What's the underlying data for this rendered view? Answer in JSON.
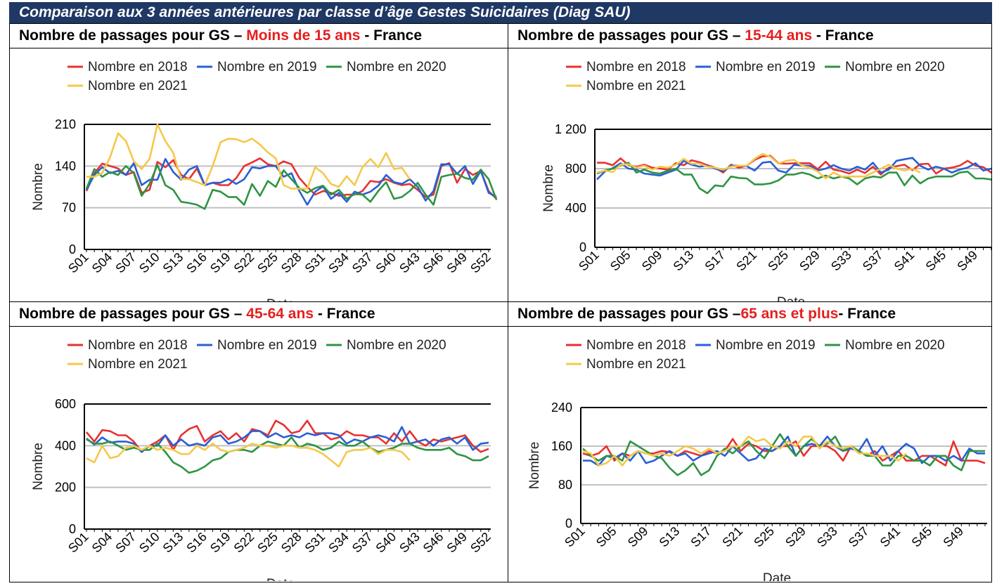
{
  "header": {
    "title": "Comparaison aux 3 années antérieures par classe d’âge Gestes Suicidaires (Diag SAU)"
  },
  "chart_data": [
    {
      "type": "line",
      "title_prefix": "Nombre de passages pour GS – ",
      "title_highlight": "Moins de 15 ans",
      "title_suffix": " - France",
      "xlabel": "Date",
      "ylabel": "Nombre",
      "ylim": [
        0,
        210
      ],
      "yticks": [
        0,
        70,
        140,
        210
      ],
      "ytick_labels": [
        "0",
        "70",
        "140",
        "210"
      ],
      "xtick_labels": [
        "S01",
        "S04",
        "S07",
        "S10",
        "S13",
        "S16",
        "S19",
        "S22",
        "S25",
        "S28",
        "S31",
        "S34",
        "S37",
        "S40",
        "S43",
        "S46",
        "S49",
        "S52"
      ],
      "xtick_step": 3,
      "legend": "top",
      "grid": "horizontal",
      "series": [
        {
          "name": "Nombre en 2018",
          "color": "#e8312f",
          "values": [
            98,
            128,
            144,
            140,
            136,
            125,
            130,
            95,
            100,
            147,
            138,
            150,
            125,
            118,
            136,
            108,
            112,
            108,
            108,
            120,
            140,
            146,
            153,
            143,
            140,
            148,
            143,
            120,
            105,
            92,
            98,
            95,
            90,
            92,
            92,
            98,
            115,
            113,
            118,
            112,
            108,
            110,
            100,
            88,
            92,
            140,
            145,
            112,
            135,
            125,
            132,
            98,
            85
          ]
        },
        {
          "name": "Nombre en 2019",
          "color": "#2a5fd4",
          "values": [
            100,
            125,
            138,
            128,
            132,
            125,
            145,
            108,
            117,
            117,
            152,
            130,
            117,
            134,
            140,
            108,
            112,
            112,
            118,
            110,
            118,
            138,
            136,
            140,
            140,
            122,
            128,
            98,
            75,
            97,
            106,
            85,
            95,
            80,
            97,
            92,
            97,
            107,
            125,
            113,
            110,
            118,
            105,
            82,
            98,
            143,
            143,
            127,
            140,
            110,
            132,
            95,
            88
          ]
        },
        {
          "name": "Nombre en 2020",
          "color": "#2e9443",
          "values": [
            102,
            135,
            122,
            130,
            125,
            140,
            128,
            90,
            110,
            142,
            108,
            100,
            80,
            78,
            75,
            68,
            100,
            97,
            88,
            88,
            75,
            110,
            90,
            115,
            105,
            133,
            118,
            103,
            95,
            103,
            107,
            92,
            100,
            85,
            93,
            92,
            80,
            98,
            113,
            85,
            88,
            98,
            112,
            92,
            75,
            122,
            125,
            127,
            120,
            117,
            134,
            118,
            83
          ]
        },
        {
          "name": "Nombre en 2021",
          "color": "#f5c84a",
          "values": [
            122,
            122,
            128,
            155,
            195,
            182,
            148,
            135,
            152,
            210,
            182,
            162,
            118,
            118,
            113,
            108,
            140,
            180,
            186,
            185,
            180,
            186,
            176,
            163,
            153,
            108,
            102,
            102,
            102,
            138,
            128,
            110,
            105,
            123,
            108,
            138,
            152,
            138,
            162,
            135,
            137,
            118
          ]
        }
      ]
    },
    {
      "type": "line",
      "title_prefix": "Nombre de passages pour GS – ",
      "title_highlight": "15-44 ans",
      "title_suffix": " - France",
      "xlabel": "Date",
      "ylabel": "Nombre",
      "ylim": [
        0,
        1200
      ],
      "yticks": [
        0,
        400,
        800,
        1200
      ],
      "ytick_labels": [
        "0",
        "400",
        "800",
        "1 200"
      ],
      "xtick_labels": [
        "S01",
        "S05",
        "S09",
        "S13",
        "S17",
        "S21",
        "S25",
        "S29",
        "S33",
        "S37",
        "S41",
        "S45",
        "S49"
      ],
      "xtick_step": 4,
      "legend": "top",
      "grid": "horizontal",
      "series": [
        {
          "name": "Nombre en 2018",
          "color": "#e8312f",
          "values": [
            860,
            860,
            835,
            905,
            835,
            820,
            840,
            810,
            800,
            790,
            855,
            835,
            885,
            865,
            835,
            810,
            760,
            840,
            810,
            830,
            890,
            925,
            930,
            855,
            850,
            855,
            855,
            855,
            795,
            870,
            790,
            775,
            750,
            790,
            755,
            820,
            740,
            810,
            825,
            840,
            785,
            845,
            850,
            750,
            800,
            810,
            830,
            880,
            830,
            815,
            760,
            700
          ]
        },
        {
          "name": "Nombre en 2019",
          "color": "#2a5fd4",
          "values": [
            690,
            770,
            805,
            855,
            800,
            790,
            750,
            740,
            730,
            760,
            790,
            880,
            840,
            820,
            830,
            800,
            775,
            830,
            830,
            825,
            780,
            860,
            870,
            780,
            760,
            840,
            830,
            830,
            780,
            800,
            835,
            800,
            780,
            820,
            790,
            860,
            760,
            790,
            880,
            895,
            910,
            830,
            790,
            820,
            800,
            760,
            790,
            810,
            855,
            780,
            800,
            730
          ]
        },
        {
          "name": "Nombre en 2020",
          "color": "#2e9443",
          "values": [
            750,
            780,
            800,
            830,
            860,
            760,
            790,
            760,
            750,
            780,
            800,
            740,
            740,
            600,
            550,
            630,
            620,
            720,
            705,
            700,
            640,
            640,
            650,
            680,
            740,
            740,
            760,
            740,
            700,
            730,
            700,
            720,
            700,
            640,
            700,
            720,
            710,
            760,
            760,
            630,
            730,
            650,
            700,
            720,
            720,
            720,
            760,
            770,
            700,
            700,
            690,
            590
          ]
        },
        {
          "name": "Nombre en 2021",
          "color": "#f5c84a",
          "values": [
            760,
            780,
            765,
            840,
            845,
            810,
            830,
            790,
            820,
            810,
            840,
            900,
            850,
            850,
            820,
            810,
            790,
            820,
            830,
            830,
            900,
            950,
            920,
            850,
            880,
            890,
            830,
            810,
            770,
            700,
            760,
            720,
            720,
            720,
            720,
            760,
            800,
            840,
            800,
            780,
            800,
            760
          ]
        }
      ]
    },
    {
      "type": "line",
      "title_prefix": "Nombre de passages pour GS – ",
      "title_highlight": "45-64 ans",
      "title_suffix": " - France",
      "xlabel": "Date",
      "ylabel": "Nombre",
      "ylim": [
        0,
        600
      ],
      "yticks": [
        0,
        200,
        400,
        600
      ],
      "ytick_labels": [
        "0",
        "200",
        "400",
        "600"
      ],
      "xtick_labels": [
        "S01",
        "S04",
        "S07",
        "S10",
        "S13",
        "S16",
        "S19",
        "S22",
        "S25",
        "S28",
        "S31",
        "S34",
        "S37",
        "S40",
        "S43",
        "S46",
        "S49",
        "S52"
      ],
      "xtick_step": 3,
      "legend": "top",
      "grid": "horizontal",
      "series": [
        {
          "name": "Nombre en 2018",
          "color": "#e8312f",
          "values": [
            465,
            420,
            475,
            470,
            450,
            450,
            420,
            370,
            400,
            420,
            450,
            380,
            450,
            480,
            495,
            420,
            450,
            470,
            430,
            460,
            420,
            480,
            470,
            450,
            520,
            500,
            460,
            470,
            520,
            460,
            460,
            430,
            440,
            470,
            450,
            450,
            440,
            440,
            410,
            460,
            420,
            470,
            420,
            400,
            430,
            420,
            430,
            440,
            450,
            400,
            370,
            385
          ]
        },
        {
          "name": "Nombre en 2019",
          "color": "#2a5fd4",
          "values": [
            435,
            405,
            440,
            415,
            420,
            420,
            410,
            370,
            400,
            400,
            450,
            400,
            430,
            400,
            410,
            400,
            440,
            450,
            410,
            420,
            440,
            470,
            470,
            440,
            460,
            440,
            450,
            440,
            460,
            450,
            460,
            460,
            450,
            410,
            430,
            420,
            440,
            450,
            440,
            420,
            490,
            410,
            420,
            430,
            400,
            430,
            440,
            410,
            440,
            380,
            410,
            415
          ]
        },
        {
          "name": "Nombre en 2020",
          "color": "#2e9443",
          "values": [
            430,
            410,
            410,
            420,
            400,
            380,
            390,
            380,
            380,
            410,
            370,
            320,
            300,
            270,
            280,
            300,
            330,
            340,
            370,
            380,
            380,
            370,
            400,
            420,
            410,
            400,
            440,
            390,
            410,
            400,
            380,
            390,
            420,
            400,
            400,
            420,
            390,
            370,
            380,
            390,
            410,
            410,
            390,
            380,
            380,
            380,
            390,
            360,
            350,
            330,
            330,
            350
          ]
        },
        {
          "name": "Nombre en 2021",
          "color": "#f5c84a",
          "values": [
            340,
            320,
            400,
            340,
            350,
            390,
            400,
            380,
            400,
            380,
            390,
            380,
            360,
            360,
            400,
            380,
            410,
            380,
            370,
            380,
            390,
            410,
            400,
            400,
            390,
            400,
            400,
            390,
            390,
            380,
            360,
            330,
            300,
            370,
            380,
            380,
            390,
            360,
            380,
            380,
            370,
            330
          ]
        }
      ]
    },
    {
      "type": "line",
      "title_prefix": "Nombre de passages pour GS –",
      "title_highlight": "65 ans et plus",
      "title_suffix": "- France",
      "xlabel": "Date",
      "ylabel": "Nombre",
      "ylim": [
        0,
        240
      ],
      "yticks": [
        0,
        80,
        160,
        240
      ],
      "ytick_labels": [
        "0",
        "80",
        "160",
        "240"
      ],
      "xtick_labels": [
        "S01",
        "S05",
        "S09",
        "S13",
        "S17",
        "S21",
        "S25",
        "S29",
        "S33",
        "S37",
        "S41",
        "S45",
        "S49"
      ],
      "xtick_step": 4,
      "legend": "top",
      "grid": "horizontal",
      "series": [
        {
          "name": "Nombre en 2018",
          "color": "#e8312f",
          "values": [
            145,
            140,
            145,
            160,
            130,
            145,
            140,
            150,
            145,
            145,
            150,
            148,
            140,
            150,
            145,
            140,
            150,
            145,
            150,
            175,
            150,
            165,
            160,
            150,
            150,
            160,
            160,
            170,
            140,
            160,
            160,
            160,
            150,
            130,
            160,
            150,
            140,
            150,
            130,
            140,
            150,
            130,
            130,
            140,
            140,
            130,
            120,
            170,
            130,
            130,
            130,
            125
          ]
        },
        {
          "name": "Nombre en 2019",
          "color": "#2a5fd4",
          "values": [
            130,
            130,
            120,
            140,
            135,
            145,
            130,
            150,
            125,
            130,
            140,
            150,
            140,
            145,
            130,
            140,
            145,
            150,
            140,
            160,
            145,
            130,
            135,
            155,
            150,
            160,
            180,
            140,
            160,
            165,
            160,
            180,
            160,
            150,
            155,
            150,
            175,
            140,
            160,
            130,
            150,
            165,
            155,
            125,
            140,
            140,
            130,
            140,
            130,
            155,
            145,
            145
          ]
        },
        {
          "name": "Nombre en 2020",
          "color": "#2e9443",
          "values": [
            155,
            140,
            130,
            140,
            140,
            130,
            170,
            160,
            150,
            140,
            135,
            115,
            100,
            110,
            125,
            100,
            110,
            140,
            155,
            145,
            160,
            170,
            150,
            135,
            160,
            185,
            160,
            140,
            160,
            175,
            160,
            165,
            180,
            150,
            160,
            150,
            140,
            140,
            120,
            120,
            140,
            140,
            130,
            130,
            120,
            140,
            140,
            120,
            110,
            150,
            150,
            150
          ]
        },
        {
          "name": "Nombre en 2021",
          "color": "#f5c84a",
          "values": [
            150,
            145,
            120,
            125,
            140,
            120,
            140,
            150,
            145,
            140,
            145,
            140,
            150,
            160,
            155,
            145,
            155,
            145,
            150,
            160,
            160,
            180,
            170,
            175,
            160,
            155,
            170,
            160,
            180,
            180,
            155,
            170,
            160,
            155,
            160,
            145,
            145,
            140,
            140,
            140,
            130,
            145
          ]
        }
      ]
    }
  ]
}
